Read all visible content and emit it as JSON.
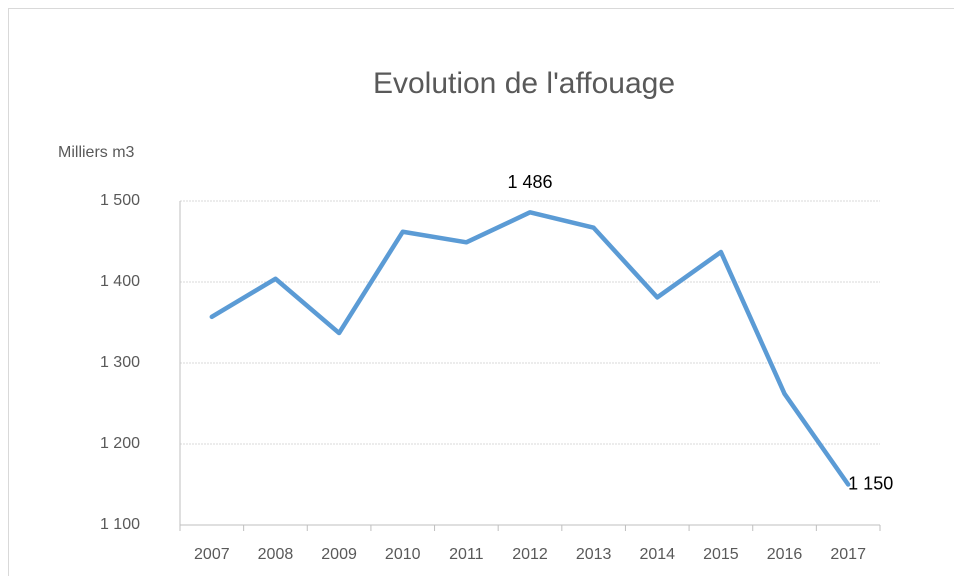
{
  "chart_data": {
    "type": "line",
    "title": "Evolution de l'affouage",
    "y_label": "Milliers m3",
    "categories": [
      "2007",
      "2008",
      "2009",
      "2010",
      "2011",
      "2012",
      "2013",
      "2014",
      "2015",
      "2016",
      "2017"
    ],
    "series": [
      {
        "name": "Affouage",
        "color": "#5b9bd5",
        "values": [
          1357,
          1404,
          1337,
          1462,
          1449,
          1486,
          1467,
          1381,
          1437,
          1262,
          1150
        ],
        "value_labels": [
          null,
          null,
          null,
          null,
          null,
          "1 486",
          null,
          null,
          null,
          null,
          "1 150"
        ]
      }
    ],
    "ylim": [
      1100,
      1500
    ],
    "yticks": [
      {
        "value": 1100,
        "label": "1 100"
      },
      {
        "value": 1200,
        "label": "1 200"
      },
      {
        "value": 1300,
        "label": "1 300"
      },
      {
        "value": 1400,
        "label": "1 400"
      },
      {
        "value": 1500,
        "label": "1 500"
      }
    ],
    "grid": true,
    "legend": false
  }
}
